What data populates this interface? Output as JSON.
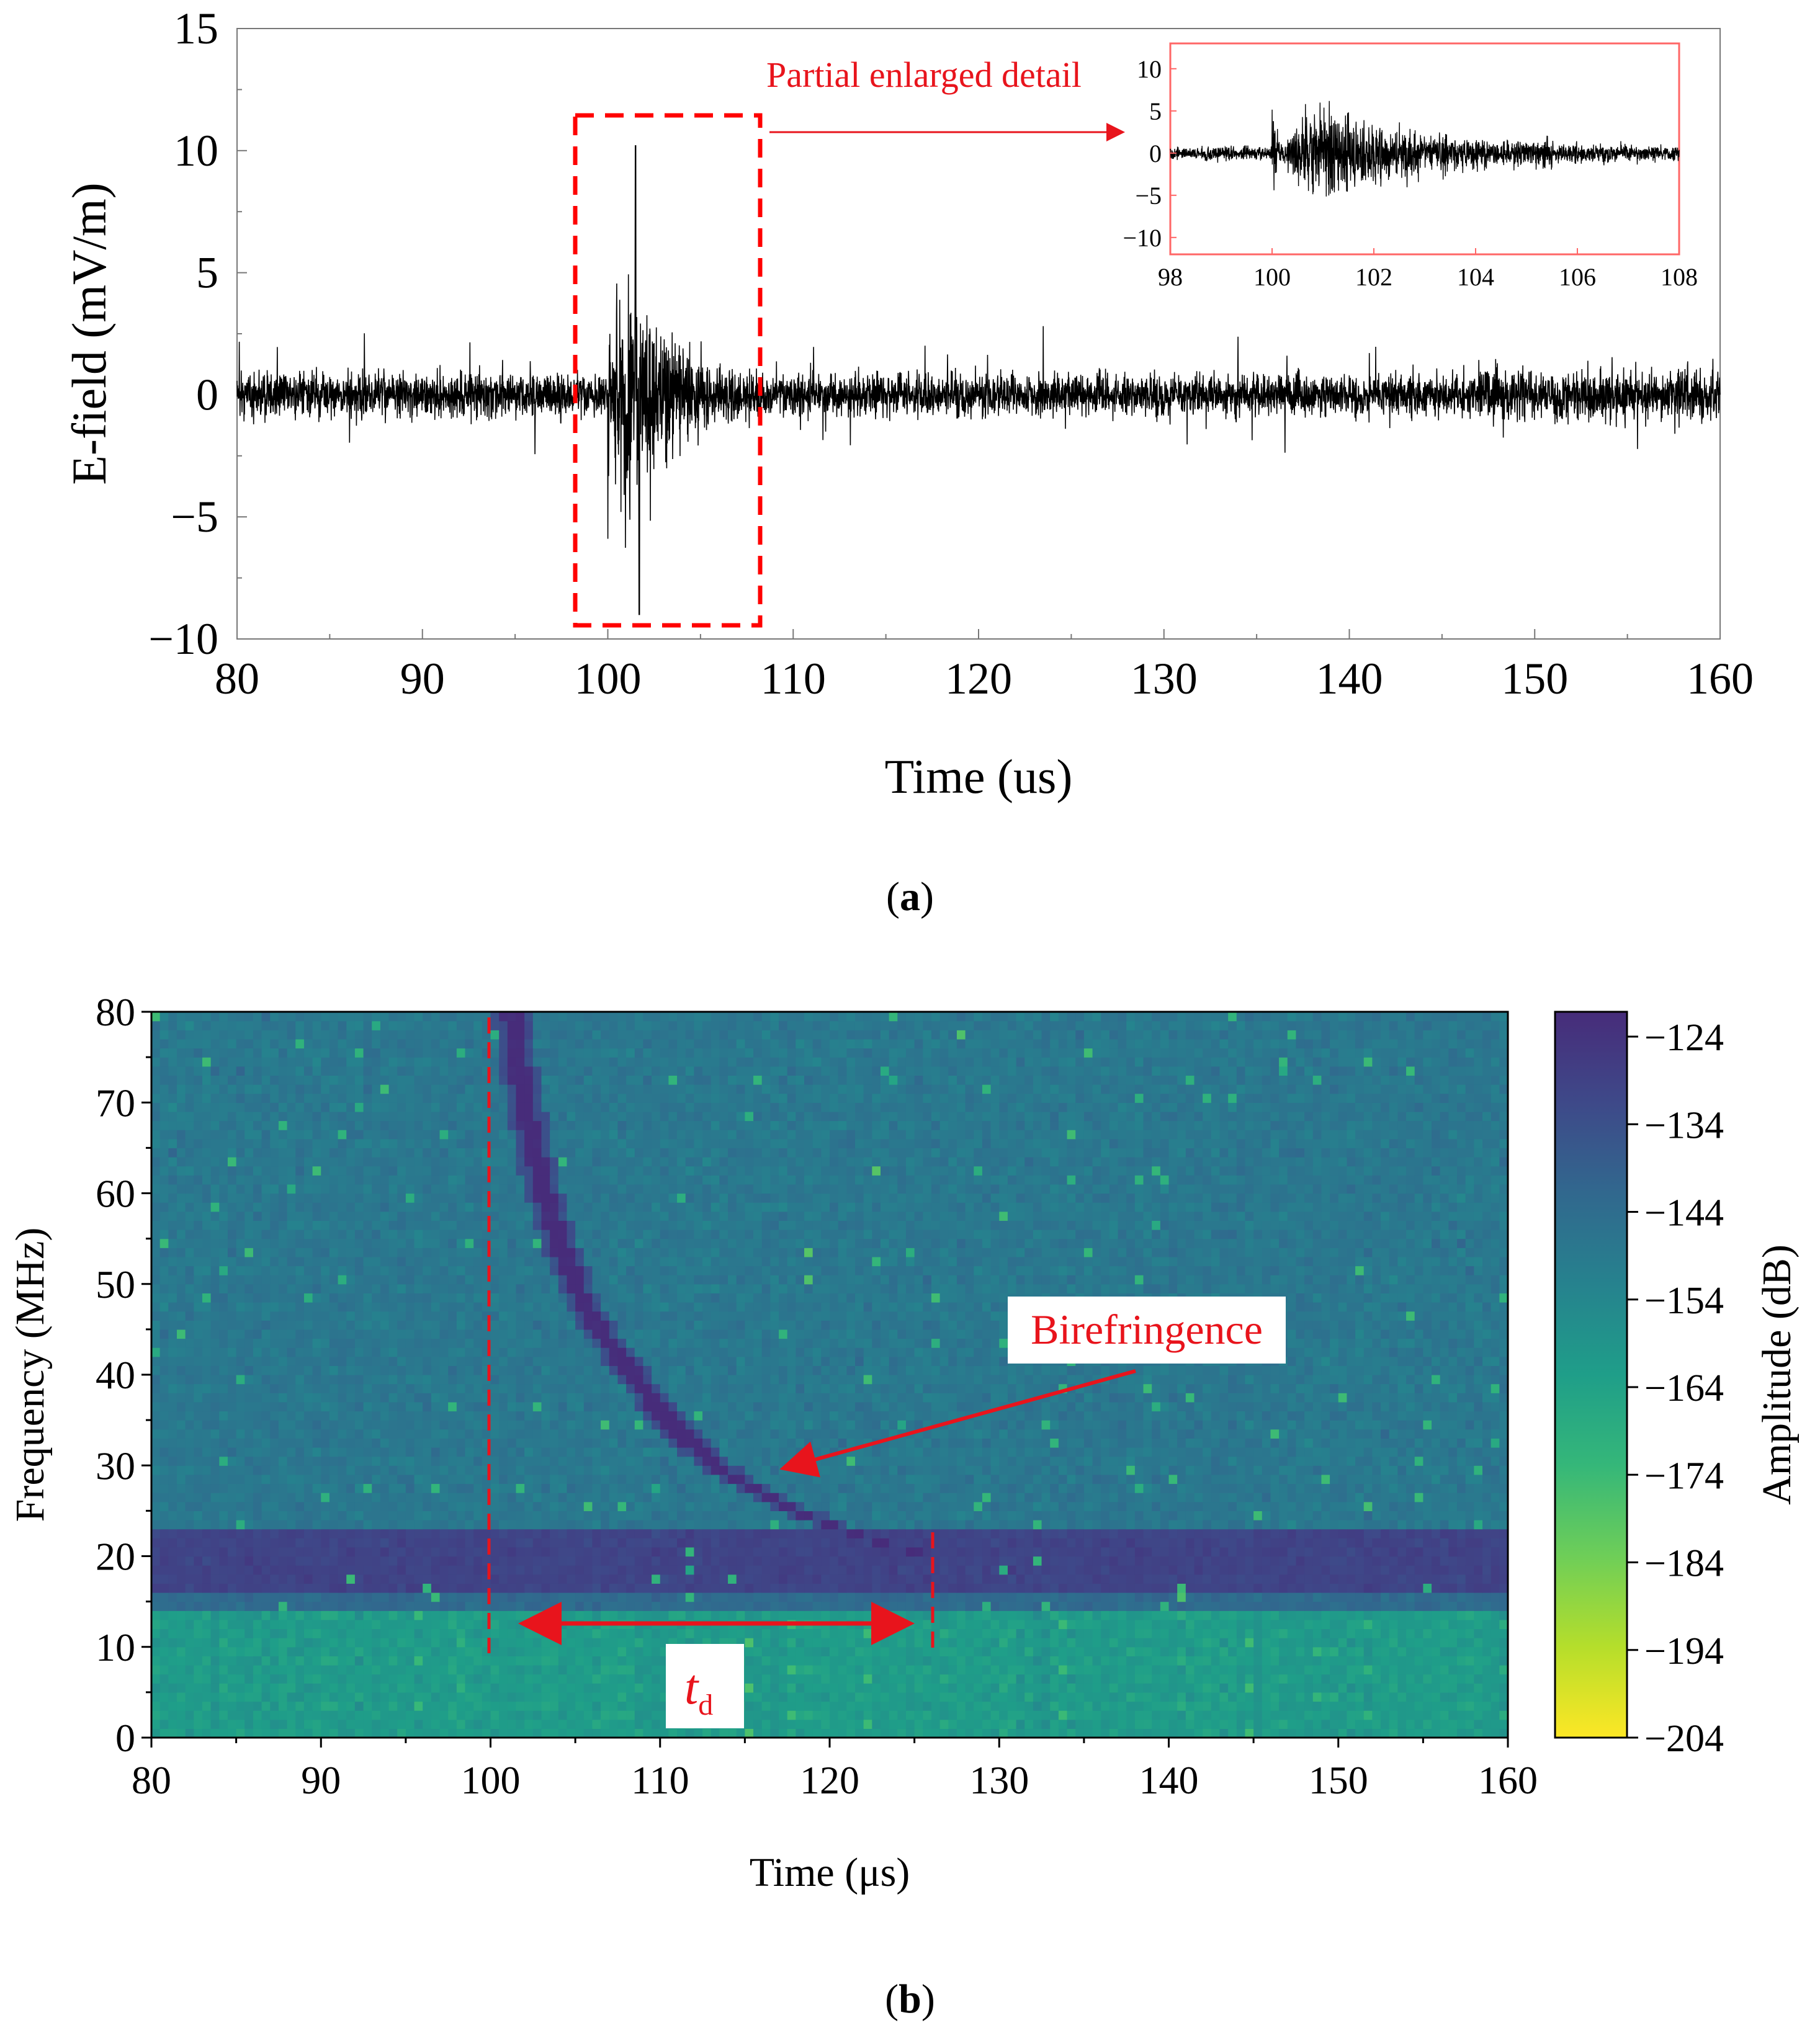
{
  "chart_data": [
    {
      "type": "line",
      "panel": "a",
      "caption_letter": "a",
      "xlabel": "Time (us)",
      "ylabel": "E-field (mV/m)",
      "xlim": [
        80,
        160
      ],
      "ylim": [
        -10,
        15
      ],
      "xticks": [
        "80",
        "90",
        "100",
        "110",
        "120",
        "130",
        "140",
        "150",
        "160"
      ],
      "yticks": [
        "15",
        "10",
        "5",
        "0",
        "−5",
        "−10"
      ],
      "series": [
        {
          "name": "E-field",
          "color": "#000000",
          "noise_envelope_mV_per_m": 2.5,
          "peak_time_us": 101.5,
          "peak_max_mV_per_m": 10.2,
          "peak_min_mV_per_m": -9.0,
          "burst_window_us": [
            100,
            108
          ]
        }
      ],
      "highlight_box": {
        "x_range": [
          98,
          108
        ],
        "y_range": [
          -9.5,
          11.5
        ],
        "color": "#ff0000"
      },
      "annotation": "Partial enlarged detail",
      "inset": {
        "xlim": [
          98,
          108
        ],
        "ylim": [
          -12,
          13
        ],
        "xticks": [
          "98",
          "100",
          "102",
          "104",
          "106",
          "108"
        ],
        "yticks": [
          "10",
          "5",
          "0",
          "−5",
          "−10"
        ],
        "frame_color": "#ff6666"
      }
    },
    {
      "type": "heatmap",
      "panel": "b",
      "caption_letter": "b",
      "xlabel": "Time (μs)",
      "ylabel": "Frequency (MHz)",
      "xlim": [
        80,
        160
      ],
      "ylim": [
        0,
        80
      ],
      "xticks": [
        "80",
        "90",
        "100",
        "110",
        "120",
        "130",
        "140",
        "150",
        "160"
      ],
      "yticks": [
        "80",
        "70",
        "60",
        "50",
        "40",
        "30",
        "20",
        "10",
        "0"
      ],
      "colorbar": {
        "label": "Amplitude (dB)",
        "range": [
          -204,
          -124
        ],
        "ticks": [
          "−124",
          "−134",
          "−144",
          "−154",
          "−164",
          "−174",
          "−184",
          "−194",
          "−204"
        ],
        "colormap": "viridis"
      },
      "background_dB": -150,
      "band": {
        "freq_range_MHz": [
          16,
          23
        ],
        "level_dB": -132
      },
      "low_freq_region": {
        "freq_range_MHz": [
          0,
          15
        ],
        "level_dB": -163
      },
      "dispersion_curve": {
        "description": "dispersive trace from ~101 us at 80 MHz down to ~126 us at 20 MHz",
        "points": [
          [
            101.2,
            80
          ],
          [
            102,
            70
          ],
          [
            103,
            61
          ],
          [
            104,
            55
          ],
          [
            105,
            50
          ],
          [
            106,
            46
          ],
          [
            108,
            41
          ],
          [
            110,
            36
          ],
          [
            112,
            32
          ],
          [
            114,
            29
          ],
          [
            116,
            27
          ],
          [
            118,
            25
          ],
          [
            120,
            23.5
          ],
          [
            122,
            22
          ],
          [
            124,
            21
          ],
          [
            126,
            20
          ]
        ],
        "level_dB": -124
      },
      "markers": {
        "t_start_us": 100,
        "t_end_us": 126,
        "marker_top_MHz": 23
      },
      "arrow_td": {
        "from_us": 102,
        "to_us": 125,
        "freq_MHz": 12.5
      },
      "label_td_main": "t",
      "label_td_sub": "d",
      "annotation": "Birefringence",
      "annotation_arrow": {
        "from": [
          133,
          40
        ],
        "to": [
          117,
          30
        ]
      },
      "annotation_color": "#e8141c"
    }
  ]
}
